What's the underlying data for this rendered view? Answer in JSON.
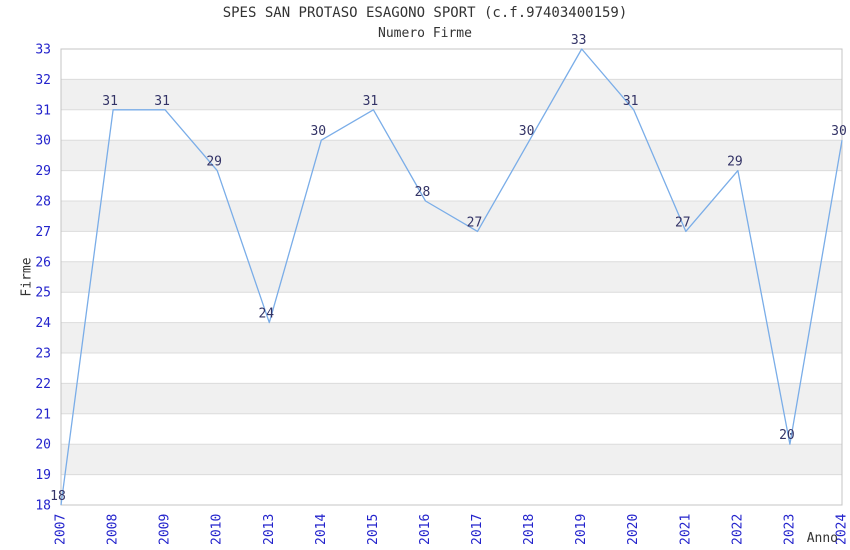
{
  "chart_data": {
    "type": "line",
    "title": "SPES SAN PROTASO ESAGONO SPORT (c.f.97403400159)",
    "subtitle": "Numero Firme",
    "xlabel": "Anno",
    "ylabel": "Firme",
    "categories": [
      "2007",
      "2008",
      "2009",
      "2010",
      "2013",
      "2014",
      "2015",
      "2016",
      "2017",
      "2018",
      "2019",
      "2020",
      "2021",
      "2022",
      "2023",
      "2024"
    ],
    "values": [
      18,
      31,
      31,
      29,
      24,
      30,
      31,
      28,
      27,
      30,
      33,
      31,
      27,
      29,
      20,
      30
    ],
    "data_labels_shown": true,
    "ylim": [
      18,
      33
    ],
    "y_ticks": [
      18,
      19,
      20,
      21,
      22,
      23,
      24,
      25,
      26,
      27,
      28,
      29,
      30,
      31,
      32,
      33
    ],
    "grid": true,
    "alternating_bands": true,
    "legend": "none",
    "colors": {
      "line": "#7aade8",
      "tick_label": "#2323cc",
      "data_label": "#333366",
      "band": "#f0f0f0",
      "grid": "#dcdcdc",
      "border": "#c4c4c4",
      "text": "#333333",
      "background": "#ffffff"
    }
  }
}
